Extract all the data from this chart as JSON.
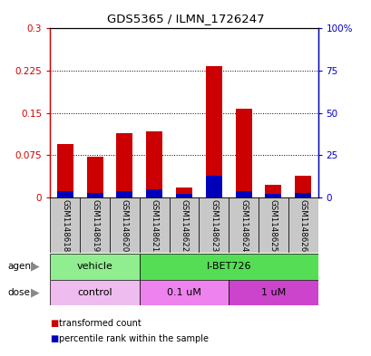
{
  "title": "GDS5365 / ILMN_1726247",
  "samples": [
    "GSM1148618",
    "GSM1148619",
    "GSM1148620",
    "GSM1148621",
    "GSM1148622",
    "GSM1148623",
    "GSM1148624",
    "GSM1148625",
    "GSM1148626"
  ],
  "red_values": [
    0.095,
    0.073,
    0.115,
    0.118,
    0.018,
    0.233,
    0.157,
    0.022,
    0.038
  ],
  "blue_pct": [
    4,
    3,
    4,
    5,
    2,
    13,
    4,
    2,
    3
  ],
  "ylim_left": [
    0,
    0.3
  ],
  "ylim_right": [
    0,
    100
  ],
  "yticks_left": [
    0,
    0.075,
    0.15,
    0.225,
    0.3
  ],
  "yticks_right": [
    0,
    25,
    50,
    75,
    100
  ],
  "ytick_labels_left": [
    "0",
    "0.075",
    "0.15",
    "0.225",
    "0.3"
  ],
  "ytick_labels_right": [
    "0",
    "25",
    "50",
    "75",
    "100%"
  ],
  "agent_groups": [
    {
      "label": "vehicle",
      "start": 0,
      "end": 3,
      "color": "#90EE90"
    },
    {
      "label": "I-BET726",
      "start": 3,
      "end": 9,
      "color": "#55DD55"
    }
  ],
  "dose_groups": [
    {
      "label": "control",
      "start": 0,
      "end": 3,
      "color": "#EEBCEE"
    },
    {
      "label": "0.1 uM",
      "start": 3,
      "end": 6,
      "color": "#EE82EE"
    },
    {
      "label": "1 uM",
      "start": 6,
      "end": 9,
      "color": "#CC44CC"
    }
  ],
  "bar_width": 0.55,
  "red_color": "#CC0000",
  "blue_color": "#0000BB",
  "bg_color": "#C8C8C8",
  "plot_bg": "#FFFFFF",
  "left_color": "#CC0000",
  "right_color": "#0000BB"
}
